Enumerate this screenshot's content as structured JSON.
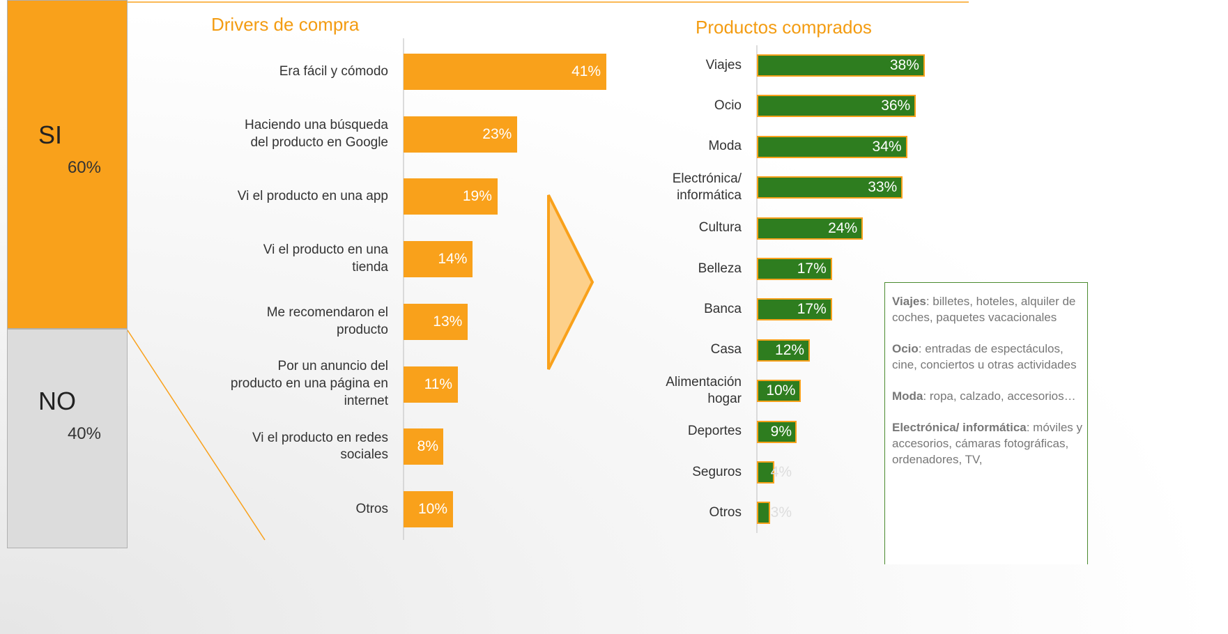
{
  "chart_data": [
    {
      "type": "stack",
      "categories": [
        "SI",
        "NO"
      ],
      "values": [
        60,
        40
      ],
      "value_labels": [
        "60%",
        "40%"
      ],
      "colors": [
        "#f9a11b",
        "#dcdcdc"
      ]
    },
    {
      "type": "barh",
      "title": "Drivers de compra",
      "categories": [
        "Era fácil y cómodo",
        "Haciendo una búsqueda\ndel producto en Google",
        "Vi el producto en una app",
        "Vi el producto en una\ntienda",
        "Me recomendaron el\nproducto",
        "Por un anuncio del\nproducto en una página en\ninternet",
        "Vi el producto en redes\nsociales",
        "Otros"
      ],
      "values": [
        41,
        23,
        19,
        14,
        13,
        11,
        8,
        10
      ],
      "value_labels": [
        "41%",
        "23%",
        "19%",
        "14%",
        "13%",
        "11%",
        "8%",
        "10%"
      ],
      "color": "#f9a11b"
    },
    {
      "type": "barh",
      "title": "Productos comprados",
      "categories": [
        "Viajes",
        "Ocio",
        "Moda",
        "Electrónica/\ninformática",
        "Cultura",
        "Belleza",
        "Banca",
        "Casa",
        "Alimentación\nhogar",
        "Deportes",
        "Seguros",
        "Otros"
      ],
      "values": [
        38,
        36,
        34,
        33,
        24,
        17,
        17,
        12,
        10,
        9,
        4,
        3
      ],
      "value_labels": [
        "38%",
        "36%",
        "34%",
        "33%",
        "24%",
        "17%",
        "17%",
        "12%",
        "10%",
        "9%",
        "4%",
        "3%"
      ],
      "color": "#2e7d1f",
      "border_color": "#f9a11b"
    }
  ],
  "notes": [
    {
      "term": "Viajes",
      "text": ": billetes, hoteles, alquiler de coches, paquetes vacacionales"
    },
    {
      "term": "Ocio",
      "text": ": entradas de espectáculos, cine, conciertos u otras actividades"
    },
    {
      "term": "Moda",
      "text": ": ropa, calzado, accesorios…"
    },
    {
      "term": "Electrónica/ informática",
      "text": ": móviles y accesorios, cámaras fotográficas, ordenadores, TV,"
    }
  ]
}
